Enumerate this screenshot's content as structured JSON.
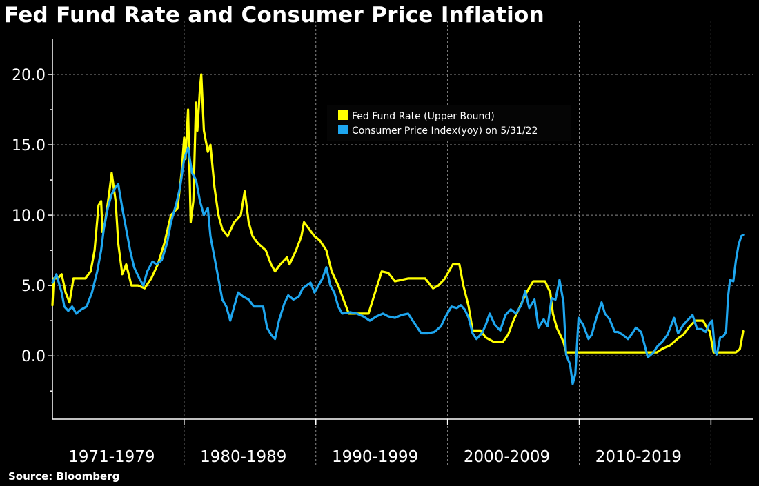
{
  "chart_data": {
    "type": "line",
    "title": "Fed Fund Rate and Consumer Price Inflation",
    "source": "Source: Bloomberg",
    "xlabel": "",
    "ylabel": "",
    "x_range": [
      1970.0,
      2022.6
    ],
    "ylim": [
      -4.5,
      22.5
    ],
    "y_ticks": [
      0.0,
      5.0,
      10.0,
      15.0,
      20.0
    ],
    "y_tick_labels": [
      "0.0",
      "5.0",
      "10.0",
      "15.0",
      "20.0"
    ],
    "x_categories": [
      {
        "label": "1971-1979",
        "center": 1974.5
      },
      {
        "label": "1980-1989",
        "center": 1984.5
      },
      {
        "label": "1990-1999",
        "center": 1994.5
      },
      {
        "label": "2000-2009",
        "center": 2004.5
      },
      {
        "label": "2010-2019",
        "center": 2014.5
      }
    ],
    "x_grid": [
      1980,
      1990,
      2000,
      2010,
      2020
    ],
    "grid": true,
    "legend_position": "top-center",
    "series": [
      {
        "name": "Fed Fund Rate (Upper Bound)",
        "color": "#ffff00",
        "points": [
          [
            1970.0,
            3.6
          ],
          [
            1970.1,
            5.5
          ],
          [
            1970.4,
            5.5
          ],
          [
            1970.7,
            5.8
          ],
          [
            1971.0,
            4.5
          ],
          [
            1971.3,
            3.8
          ],
          [
            1971.6,
            5.5
          ],
          [
            1972.0,
            5.5
          ],
          [
            1972.5,
            5.5
          ],
          [
            1972.9,
            6.0
          ],
          [
            1973.2,
            7.5
          ],
          [
            1973.5,
            10.7
          ],
          [
            1973.7,
            11.0
          ],
          [
            1973.8,
            8.8
          ],
          [
            1974.0,
            9.5
          ],
          [
            1974.3,
            11.5
          ],
          [
            1974.5,
            13.0
          ],
          [
            1974.8,
            11.0
          ],
          [
            1975.0,
            8.0
          ],
          [
            1975.3,
            5.8
          ],
          [
            1975.6,
            6.5
          ],
          [
            1976.0,
            5.0
          ],
          [
            1976.5,
            5.0
          ],
          [
            1977.0,
            4.8
          ],
          [
            1977.5,
            5.5
          ],
          [
            1978.0,
            6.5
          ],
          [
            1978.5,
            8.0
          ],
          [
            1979.0,
            10.0
          ],
          [
            1979.5,
            10.5
          ],
          [
            1979.8,
            13.0
          ],
          [
            1980.0,
            15.5
          ],
          [
            1980.1,
            14.0
          ],
          [
            1980.3,
            17.5
          ],
          [
            1980.5,
            9.5
          ],
          [
            1980.7,
            11.0
          ],
          [
            1980.9,
            18.0
          ],
          [
            1981.0,
            16.0
          ],
          [
            1981.2,
            19.0
          ],
          [
            1981.3,
            20.0
          ],
          [
            1981.5,
            16.0
          ],
          [
            1981.8,
            14.5
          ],
          [
            1982.0,
            15.0
          ],
          [
            1982.3,
            12.0
          ],
          [
            1982.6,
            10.0
          ],
          [
            1982.9,
            9.0
          ],
          [
            1983.3,
            8.5
          ],
          [
            1983.8,
            9.5
          ],
          [
            1984.3,
            10.0
          ],
          [
            1984.6,
            11.7
          ],
          [
            1984.9,
            9.5
          ],
          [
            1985.2,
            8.5
          ],
          [
            1985.6,
            8.0
          ],
          [
            1986.2,
            7.5
          ],
          [
            1986.6,
            6.5
          ],
          [
            1986.9,
            6.0
          ],
          [
            1987.3,
            6.5
          ],
          [
            1987.8,
            7.0
          ],
          [
            1988.0,
            6.5
          ],
          [
            1988.5,
            7.5
          ],
          [
            1988.9,
            8.5
          ],
          [
            1989.1,
            9.5
          ],
          [
            1989.5,
            9.0
          ],
          [
            1989.9,
            8.5
          ],
          [
            1990.3,
            8.2
          ],
          [
            1990.8,
            7.5
          ],
          [
            1991.2,
            6.0
          ],
          [
            1991.7,
            5.0
          ],
          [
            1992.1,
            4.0
          ],
          [
            1992.5,
            3.0
          ],
          [
            1993.0,
            3.0
          ],
          [
            1993.5,
            3.0
          ],
          [
            1994.0,
            3.0
          ],
          [
            1994.5,
            4.5
          ],
          [
            1995.0,
            6.0
          ],
          [
            1995.5,
            5.9
          ],
          [
            1996.0,
            5.3
          ],
          [
            1997.0,
            5.5
          ],
          [
            1997.5,
            5.5
          ],
          [
            1998.3,
            5.5
          ],
          [
            1998.9,
            4.8
          ],
          [
            1999.3,
            5.0
          ],
          [
            1999.8,
            5.5
          ],
          [
            2000.4,
            6.5
          ],
          [
            2000.9,
            6.5
          ],
          [
            2001.2,
            5.0
          ],
          [
            2001.6,
            3.5
          ],
          [
            2001.9,
            1.8
          ],
          [
            2002.5,
            1.8
          ],
          [
            2002.9,
            1.3
          ],
          [
            2003.5,
            1.0
          ],
          [
            2004.2,
            1.0
          ],
          [
            2004.6,
            1.5
          ],
          [
            2005.0,
            2.5
          ],
          [
            2005.5,
            3.5
          ],
          [
            2006.0,
            4.5
          ],
          [
            2006.5,
            5.3
          ],
          [
            2007.4,
            5.3
          ],
          [
            2007.8,
            4.5
          ],
          [
            2008.0,
            3.0
          ],
          [
            2008.3,
            2.0
          ],
          [
            2008.8,
            1.0
          ],
          [
            2009.0,
            0.25
          ],
          [
            2010.0,
            0.25
          ],
          [
            2012.0,
            0.25
          ],
          [
            2014.0,
            0.25
          ],
          [
            2015.9,
            0.25
          ],
          [
            2016.3,
            0.5
          ],
          [
            2016.9,
            0.75
          ],
          [
            2017.5,
            1.25
          ],
          [
            2017.9,
            1.5
          ],
          [
            2018.3,
            2.0
          ],
          [
            2018.8,
            2.5
          ],
          [
            2019.4,
            2.5
          ],
          [
            2019.7,
            2.0
          ],
          [
            2019.9,
            1.75
          ],
          [
            2020.2,
            0.25
          ],
          [
            2021.0,
            0.25
          ],
          [
            2021.9,
            0.25
          ],
          [
            2022.2,
            0.5
          ],
          [
            2022.3,
            1.0
          ],
          [
            2022.45,
            1.75
          ]
        ]
      },
      {
        "name": "Consumer Price Index(yoy) on 5/31/22",
        "color": "#1ea6ef",
        "points": [
          [
            1970.0,
            5.2
          ],
          [
            1970.3,
            5.8
          ],
          [
            1970.7,
            4.5
          ],
          [
            1970.9,
            3.5
          ],
          [
            1971.2,
            3.2
          ],
          [
            1971.5,
            3.5
          ],
          [
            1971.8,
            3.0
          ],
          [
            1972.2,
            3.3
          ],
          [
            1972.6,
            3.5
          ],
          [
            1973.0,
            4.5
          ],
          [
            1973.4,
            6.0
          ],
          [
            1973.7,
            7.5
          ],
          [
            1973.9,
            9.0
          ],
          [
            1974.2,
            10.5
          ],
          [
            1974.5,
            11.5
          ],
          [
            1974.8,
            12.0
          ],
          [
            1975.0,
            12.2
          ],
          [
            1975.3,
            10.5
          ],
          [
            1975.6,
            9.0
          ],
          [
            1975.9,
            7.5
          ],
          [
            1976.2,
            6.3
          ],
          [
            1976.6,
            5.5
          ],
          [
            1976.9,
            5.0
          ],
          [
            1977.2,
            6.0
          ],
          [
            1977.6,
            6.7
          ],
          [
            1977.9,
            6.5
          ],
          [
            1978.3,
            6.8
          ],
          [
            1978.7,
            8.0
          ],
          [
            1979.0,
            9.5
          ],
          [
            1979.4,
            10.8
          ],
          [
            1979.7,
            12.0
          ],
          [
            1980.0,
            14.0
          ],
          [
            1980.3,
            14.8
          ],
          [
            1980.6,
            13.0
          ],
          [
            1980.9,
            12.5
          ],
          [
            1981.2,
            11.0
          ],
          [
            1981.5,
            10.0
          ],
          [
            1981.8,
            10.5
          ],
          [
            1982.0,
            8.5
          ],
          [
            1982.3,
            7.0
          ],
          [
            1982.6,
            5.5
          ],
          [
            1982.9,
            4.0
          ],
          [
            1983.2,
            3.5
          ],
          [
            1983.5,
            2.5
          ],
          [
            1983.8,
            3.5
          ],
          [
            1984.1,
            4.5
          ],
          [
            1984.5,
            4.2
          ],
          [
            1984.9,
            4.0
          ],
          [
            1985.3,
            3.5
          ],
          [
            1985.7,
            3.5
          ],
          [
            1986.0,
            3.5
          ],
          [
            1986.3,
            2.0
          ],
          [
            1986.6,
            1.5
          ],
          [
            1986.9,
            1.2
          ],
          [
            1987.2,
            2.5
          ],
          [
            1987.6,
            3.7
          ],
          [
            1987.9,
            4.3
          ],
          [
            1988.3,
            4.0
          ],
          [
            1988.7,
            4.2
          ],
          [
            1989.0,
            4.8
          ],
          [
            1989.3,
            5.0
          ],
          [
            1989.6,
            5.2
          ],
          [
            1989.9,
            4.5
          ],
          [
            1990.2,
            5.0
          ],
          [
            1990.5,
            5.5
          ],
          [
            1990.8,
            6.3
          ],
          [
            1991.1,
            5.0
          ],
          [
            1991.4,
            4.5
          ],
          [
            1991.7,
            3.5
          ],
          [
            1992.0,
            3.0
          ],
          [
            1992.6,
            3.1
          ],
          [
            1993.1,
            3.0
          ],
          [
            1993.6,
            2.8
          ],
          [
            1994.1,
            2.5
          ],
          [
            1994.6,
            2.8
          ],
          [
            1995.1,
            3.0
          ],
          [
            1995.5,
            2.8
          ],
          [
            1996.0,
            2.7
          ],
          [
            1996.5,
            2.9
          ],
          [
            1997.0,
            3.0
          ],
          [
            1997.5,
            2.3
          ],
          [
            1998.0,
            1.6
          ],
          [
            1998.5,
            1.6
          ],
          [
            1999.0,
            1.7
          ],
          [
            1999.5,
            2.1
          ],
          [
            1999.8,
            2.7
          ],
          [
            2000.3,
            3.5
          ],
          [
            2000.7,
            3.4
          ],
          [
            2001.0,
            3.6
          ],
          [
            2001.3,
            3.3
          ],
          [
            2001.6,
            2.7
          ],
          [
            2001.9,
            1.6
          ],
          [
            2002.2,
            1.2
          ],
          [
            2002.6,
            1.6
          ],
          [
            2002.9,
            2.2
          ],
          [
            2003.2,
            3.0
          ],
          [
            2003.6,
            2.2
          ],
          [
            2004.0,
            1.8
          ],
          [
            2004.4,
            2.9
          ],
          [
            2004.8,
            3.3
          ],
          [
            2005.2,
            3.0
          ],
          [
            2005.6,
            3.6
          ],
          [
            2005.9,
            4.6
          ],
          [
            2006.2,
            3.4
          ],
          [
            2006.6,
            4.0
          ],
          [
            2006.9,
            2.0
          ],
          [
            2007.3,
            2.6
          ],
          [
            2007.6,
            2.1
          ],
          [
            2007.9,
            4.1
          ],
          [
            2008.2,
            4.0
          ],
          [
            2008.5,
            5.4
          ],
          [
            2008.8,
            3.8
          ],
          [
            2009.0,
            0.1
          ],
          [
            2009.3,
            -0.6
          ],
          [
            2009.5,
            -2.0
          ],
          [
            2009.7,
            -1.3
          ],
          [
            2009.95,
            2.7
          ],
          [
            2010.3,
            2.2
          ],
          [
            2010.7,
            1.2
          ],
          [
            2010.95,
            1.5
          ],
          [
            2011.3,
            2.7
          ],
          [
            2011.7,
            3.8
          ],
          [
            2011.95,
            3.0
          ],
          [
            2012.3,
            2.6
          ],
          [
            2012.7,
            1.7
          ],
          [
            2012.95,
            1.7
          ],
          [
            2013.3,
            1.5
          ],
          [
            2013.7,
            1.2
          ],
          [
            2013.95,
            1.5
          ],
          [
            2014.3,
            2.0
          ],
          [
            2014.7,
            1.7
          ],
          [
            2014.95,
            0.8
          ],
          [
            2015.2,
            -0.1
          ],
          [
            2015.6,
            0.2
          ],
          [
            2015.95,
            0.7
          ],
          [
            2016.3,
            1.0
          ],
          [
            2016.7,
            1.5
          ],
          [
            2016.95,
            2.1
          ],
          [
            2017.2,
            2.7
          ],
          [
            2017.5,
            1.6
          ],
          [
            2017.9,
            2.2
          ],
          [
            2018.2,
            2.5
          ],
          [
            2018.6,
            2.9
          ],
          [
            2018.95,
            1.9
          ],
          [
            2019.3,
            1.9
          ],
          [
            2019.6,
            1.7
          ],
          [
            2019.9,
            2.3
          ],
          [
            2020.1,
            2.5
          ],
          [
            2020.3,
            0.3
          ],
          [
            2020.45,
            0.1
          ],
          [
            2020.7,
            1.3
          ],
          [
            2020.95,
            1.4
          ],
          [
            2021.15,
            1.7
          ],
          [
            2021.3,
            4.2
          ],
          [
            2021.45,
            5.4
          ],
          [
            2021.7,
            5.3
          ],
          [
            2021.9,
            6.8
          ],
          [
            2022.1,
            7.9
          ],
          [
            2022.3,
            8.5
          ],
          [
            2022.45,
            8.6
          ]
        ]
      }
    ]
  }
}
